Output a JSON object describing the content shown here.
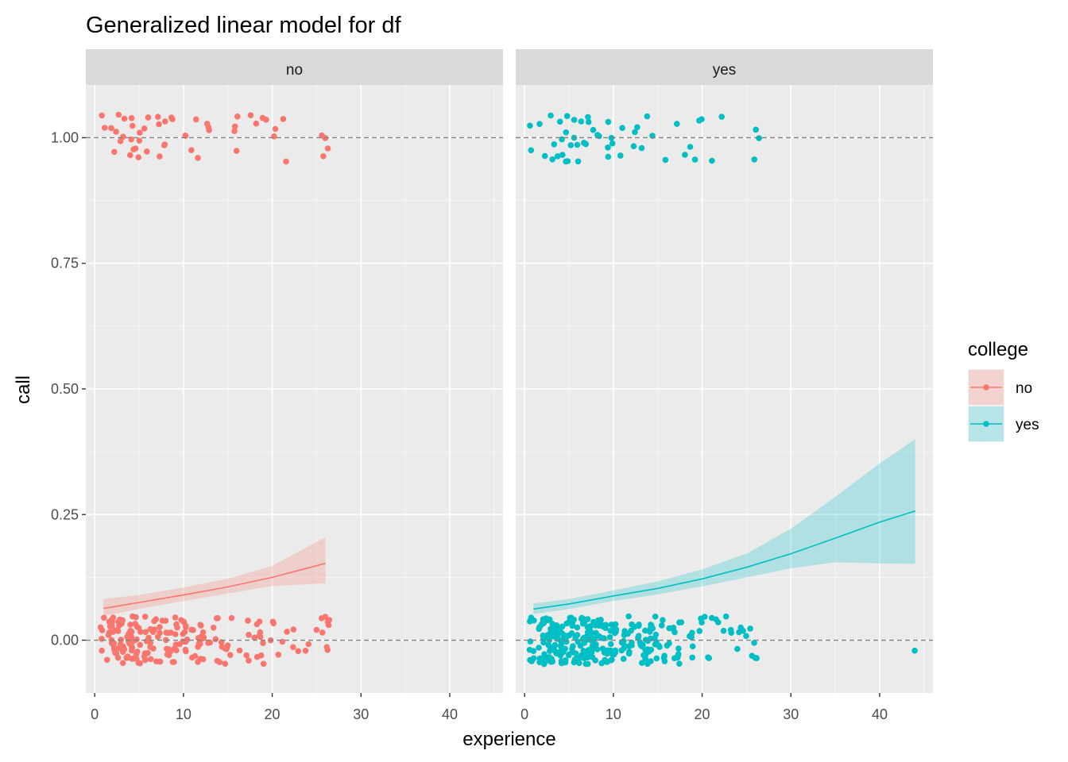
{
  "chart_data": {
    "type": "scatter",
    "title": "Generalized linear model for df",
    "xlabel": "experience",
    "ylabel": "call",
    "xlim": [
      -1,
      46
    ],
    "ylim": [
      -0.105,
      1.105
    ],
    "x_ticks": [
      0,
      10,
      20,
      30,
      40
    ],
    "y_ticks": [
      0,
      0.25,
      0.5,
      0.75,
      1.0
    ],
    "x_tick_labels": [
      "0",
      "10",
      "20",
      "30",
      "40"
    ],
    "y_tick_labels": [
      "0.00",
      "0.25",
      "0.50",
      "0.75",
      "1.00"
    ],
    "reference_lines": [
      0,
      1
    ],
    "grid": true,
    "facet_variable": "college",
    "facets": [
      {
        "label": "no",
        "color": "#F8766D",
        "fit": {
          "x": [
            1,
            5,
            10,
            15,
            20,
            26
          ],
          "y": [
            0.063,
            0.075,
            0.09,
            0.106,
            0.125,
            0.153
          ],
          "lower": [
            0.048,
            0.062,
            0.078,
            0.093,
            0.108,
            0.113
          ],
          "upper": [
            0.082,
            0.09,
            0.105,
            0.122,
            0.148,
            0.205
          ]
        },
        "points": {
          "zero": {
            "ranges": [
              [
                1,
                5,
                70
              ],
              [
                5,
                10,
                60
              ],
              [
                10,
                15,
                35
              ],
              [
                15,
                20,
                20
              ],
              [
                20,
                26,
                12
              ]
            ],
            "extra_x": [
              26,
              26,
              26,
              26,
              26,
              26
            ]
          },
          "one": {
            "x": [
              1,
              1,
              2,
              2,
              2,
              3,
              3,
              3,
              3,
              4,
              4,
              4,
              4,
              4,
              5,
              5,
              5,
              5,
              6,
              6,
              6,
              7,
              7,
              7,
              8,
              8,
              8,
              9,
              9,
              10,
              10,
              11,
              11,
              12,
              13,
              13,
              13,
              16,
              16,
              16,
              16,
              18,
              18,
              19,
              19,
              20,
              20,
              21,
              22,
              26,
              26,
              26,
              26
            ]
          }
        }
      },
      {
        "label": "yes",
        "color": "#00BFC4",
        "fit": {
          "x": [
            1,
            5,
            10,
            15,
            20,
            25,
            30,
            35,
            40,
            44
          ],
          "y": [
            0.062,
            0.072,
            0.088,
            0.103,
            0.122,
            0.145,
            0.172,
            0.203,
            0.235,
            0.257
          ],
          "lower": [
            0.052,
            0.062,
            0.078,
            0.091,
            0.107,
            0.125,
            0.143,
            0.155,
            0.153,
            0.152
          ],
          "upper": [
            0.073,
            0.082,
            0.099,
            0.117,
            0.141,
            0.172,
            0.222,
            0.285,
            0.352,
            0.4
          ]
        },
        "points": {
          "zero": {
            "ranges": [
              [
                1,
                5,
                90
              ],
              [
                5,
                10,
                110
              ],
              [
                10,
                15,
                60
              ],
              [
                15,
                20,
                25
              ],
              [
                20,
                26,
                22
              ]
            ],
            "extra_x": [
              44
            ]
          },
          "one": {
            "x": [
              1,
              1,
              2,
              2,
              3,
              3,
              3,
              4,
              4,
              4,
              4,
              5,
              5,
              5,
              5,
              5,
              6,
              6,
              6,
              6,
              6,
              7,
              7,
              7,
              7,
              8,
              8,
              8,
              9,
              9,
              9,
              10,
              10,
              11,
              11,
              12,
              12,
              13,
              13,
              14,
              14,
              16,
              17,
              18,
              19,
              19,
              20,
              20,
              21,
              22,
              26,
              26,
              26
            ]
          }
        }
      }
    ],
    "legend": {
      "title": "college",
      "position": "right",
      "entries": [
        {
          "label": "no",
          "color": "#F8766D"
        },
        {
          "label": "yes",
          "color": "#00BFC4"
        }
      ]
    }
  }
}
